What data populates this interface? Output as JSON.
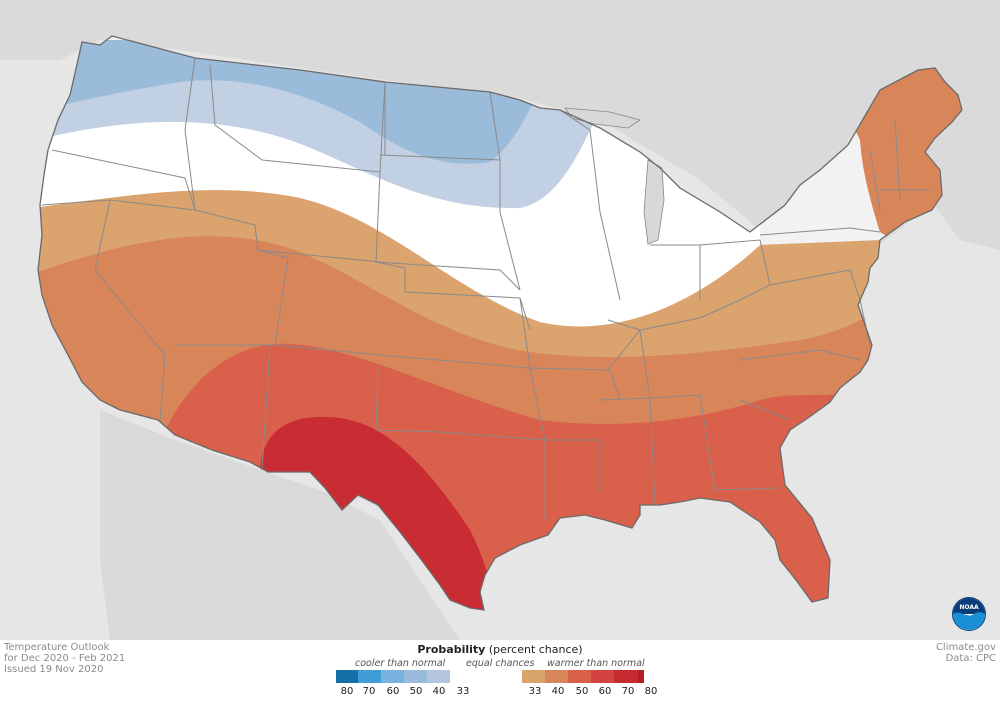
{
  "info": {
    "line1": "Temperature Outlook",
    "line2": "for Dec 2020 - Feb 2021",
    "line3": "Issued 19 Nov 2020"
  },
  "credits": {
    "source1": "Climate.gov",
    "source2": "Data: CPC"
  },
  "legend": {
    "title_bold": "Probability",
    "title_rest": " (percent chance)",
    "cooler_label": "cooler than normal",
    "equal_label": "equal chances",
    "warmer_label": "warmer than normal",
    "cool_ticks": [
      "80",
      "70",
      "60",
      "50",
      "40",
      "33"
    ],
    "warm_ticks": [
      "33",
      "40",
      "50",
      "60",
      "70",
      "80"
    ],
    "cool_colors": [
      "#176fa8",
      "#3f9ed8",
      "#78b3df",
      "#9bbbda",
      "#b3c5df"
    ],
    "equal_color": "#ffffff",
    "warm_colors": [
      "#d9a46c",
      "#d8855a",
      "#d9614a",
      "#d34340",
      "#c62a2e",
      "#b71d26"
    ]
  },
  "map": {
    "background_color": "#e6e6e6",
    "land_color": "#f2f2f2",
    "region_colors": {
      "below_40_50": "#9bbbda",
      "below_33_40": "#c2d0e3",
      "equal_chances": "#ffffff",
      "above_33_40": "#dba36d",
      "above_40_50": "#d8855a",
      "above_50_60": "#d9604a",
      "above_60_70": "#c92d33"
    },
    "logo_icon": "noaa-logo-icon"
  }
}
